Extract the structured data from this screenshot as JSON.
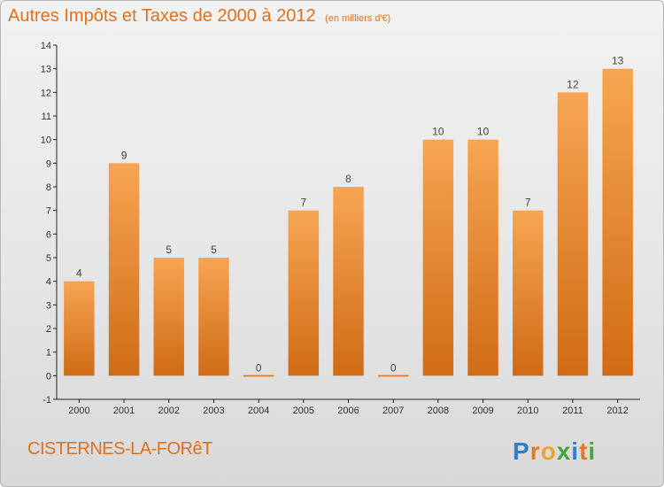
{
  "title": "Autres Impôts et Taxes de 2000 à 2012",
  "subtitle": "(en milliers d'€)",
  "commune": "CISTERNES-LA-FORêT",
  "logo_text": "Proxiti",
  "colors": {
    "accent": "#e0711c",
    "bar_light": "#f7a552",
    "bar_dark": "#d06b16",
    "axis": "#222222",
    "grid": "#d0d0d0",
    "background": "#eeeeee"
  },
  "chart_data": {
    "type": "bar",
    "title": "Autres Impôts et Taxes de 2000 à 2012",
    "subtitle": "(en milliers d'€)",
    "categories": [
      "2000",
      "2001",
      "2002",
      "2003",
      "2004",
      "2005",
      "2006",
      "2007",
      "2008",
      "2009",
      "2010",
      "2011",
      "2012"
    ],
    "values": [
      4,
      9,
      5,
      5,
      0,
      7,
      8,
      0,
      10,
      10,
      7,
      12,
      13
    ],
    "ylim": [
      -1,
      14
    ],
    "yticks": [
      "-1",
      "0",
      "1",
      "2",
      "3",
      "4",
      "5",
      "6",
      "7",
      "8",
      "9",
      "10",
      "11",
      "12",
      "13",
      "14"
    ],
    "xlabel": "",
    "ylabel": "",
    "grid": false,
    "data_labels": true
  }
}
